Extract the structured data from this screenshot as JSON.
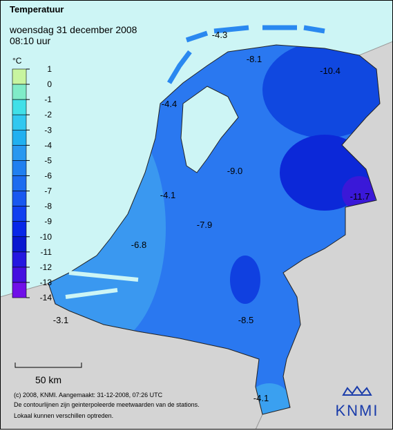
{
  "header": {
    "title": "Temperatuur",
    "date": "woensdag 31 december 2008",
    "time": "08:10 uur"
  },
  "legend": {
    "unit": "°C",
    "ticks": [
      1,
      0,
      -1,
      -2,
      -3,
      -4,
      -5,
      -6,
      -7,
      -8,
      -9,
      -10,
      -11,
      -12,
      -13,
      -14
    ],
    "colors": [
      "#c8f5a0",
      "#80ecc8",
      "#40e0e8",
      "#30c8f0",
      "#20b0f0",
      "#2898f0",
      "#2080f0",
      "#1c6cf0",
      "#1858f0",
      "#1040f0",
      "#0828e8",
      "#0818d0",
      "#2418e0",
      "#4410e0",
      "#7010e8"
    ]
  },
  "labels": [
    "-4.3",
    "-8.1",
    "-10.4",
    "-4.4",
    "-9.0",
    "-11.7",
    "-4.1",
    "-7.9",
    "-6.8",
    "-3.1",
    "-8.5",
    "-4.1"
  ],
  "scale_bar": "50 km",
  "footer": [
    "(c) 2008, KNMI. Aangemaakt: 31-12-2008, 07:26 UTC",
    "De contourlijnen zijn geinterpoleerde meetwaarden van de stations.",
    "Lokaal kunnen verschillen optreden."
  ],
  "logo": "KNMI"
}
